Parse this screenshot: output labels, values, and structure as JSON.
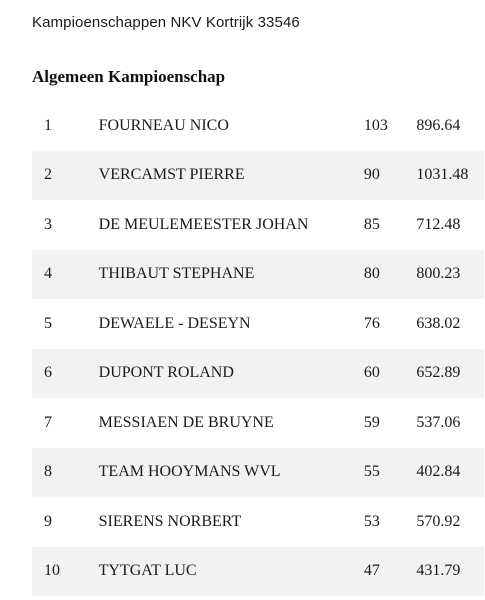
{
  "header": {
    "title": "Kampioenschappen NKV Kortrijk 33546"
  },
  "section": {
    "title": "Algemeen Kampioenschap"
  },
  "rows": [
    {
      "rank": "1",
      "name": "FOURNEAU NICO",
      "points": "103",
      "score": "896.64"
    },
    {
      "rank": "2",
      "name": "VERCAMST PIERRE",
      "points": "90",
      "score": "1031.48"
    },
    {
      "rank": "3",
      "name": "DE MEULEMEESTER JOHAN",
      "points": "85",
      "score": "712.48"
    },
    {
      "rank": "4",
      "name": "THIBAUT STEPHANE",
      "points": "80",
      "score": "800.23"
    },
    {
      "rank": "5",
      "name": "DEWAELE - DESEYN",
      "points": "76",
      "score": "638.02"
    },
    {
      "rank": "6",
      "name": "DUPONT ROLAND",
      "points": "60",
      "score": "652.89"
    },
    {
      "rank": "7",
      "name": "MESSIAEN DE BRUYNE",
      "points": "59",
      "score": "537.06"
    },
    {
      "rank": "8",
      "name": "TEAM HOOYMANS WVL",
      "points": "55",
      "score": "402.84"
    },
    {
      "rank": "9",
      "name": "SIERENS NORBERT",
      "points": "53",
      "score": "570.92"
    },
    {
      "rank": "10",
      "name": "TYTGAT LUC",
      "points": "47",
      "score": "431.79"
    }
  ]
}
